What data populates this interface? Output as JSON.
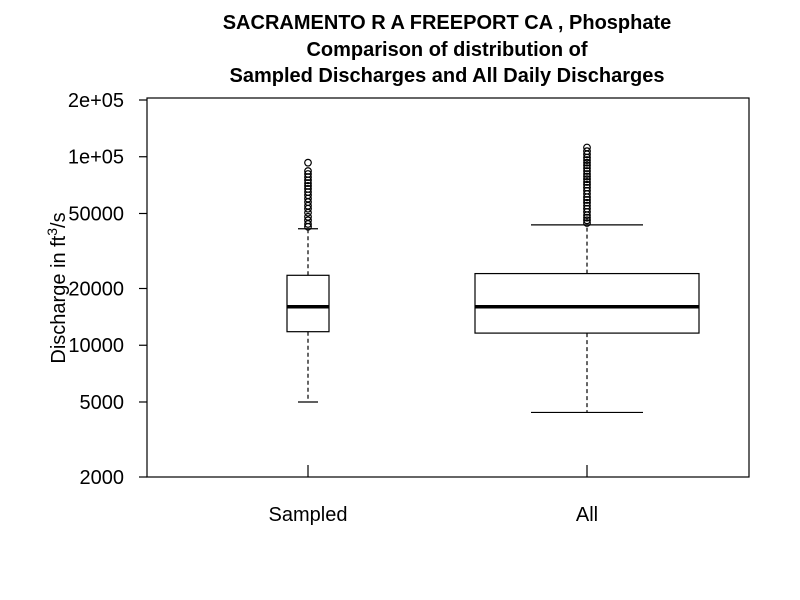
{
  "title_lines": [
    "SACRAMENTO R A FREEPORT CA , Phosphate",
    "Comparison of distribution of",
    "Sampled Discharges and All Daily Discharges"
  ],
  "chart_data": {
    "type": "boxplot",
    "ylabel_main": "Discharge in ft",
    "ylabel_exponent": "3",
    "ylabel_suffix": "/s",
    "y_scale": "log",
    "ylim": [
      2000,
      200000
    ],
    "y_ticks": [
      2000,
      5000,
      10000,
      20000,
      50000,
      100000,
      200000
    ],
    "y_tick_labels": [
      "2000",
      "5000",
      "10000",
      "20000",
      "50000",
      "1e+05",
      "2e+05"
    ],
    "categories": [
      "Sampled",
      "All"
    ],
    "boxes": [
      {
        "name": "Sampled",
        "whisker_low": 5000,
        "q1": 11800,
        "median": 16000,
        "q3": 23500,
        "whisker_high": 41500,
        "outliers": [
          42500,
          44000,
          46000,
          48000,
          50500,
          53000,
          55000,
          57500,
          60000,
          62500,
          65000,
          67500,
          70000,
          72500,
          75000,
          78000,
          81000,
          84000,
          93000
        ]
      },
      {
        "name": "All",
        "whisker_low": 4400,
        "q1": 11600,
        "median": 16000,
        "q3": 24000,
        "whisker_high": 43500,
        "outliers": [
          44500,
          46000,
          47500,
          49000,
          51000,
          53000,
          55000,
          57000,
          59000,
          61000,
          63500,
          66000,
          68500,
          71000,
          73500,
          76000,
          78500,
          81000,
          84000,
          87000,
          90000,
          93000,
          96000,
          99000,
          103000,
          107000,
          112000
        ]
      }
    ],
    "grid": false
  }
}
